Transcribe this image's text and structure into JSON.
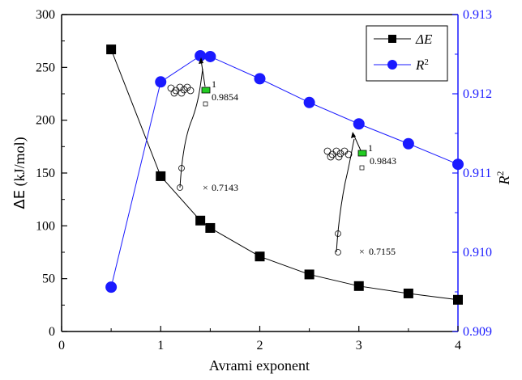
{
  "chart_data": {
    "type": "line",
    "xlabel": "Avrami exponent",
    "ylabel_left": {
      "symbol": "ΔE",
      "unit": " (kJ/mol)"
    },
    "ylabel_right": {
      "base": "R",
      "sup": "2"
    },
    "x_ticks": [
      "0",
      "1",
      "2",
      "3",
      "4"
    ],
    "y_left_ticks": [
      "0",
      "50",
      "100",
      "150",
      "200",
      "250",
      "300"
    ],
    "y_right_ticks": [
      "0.909",
      "0.910",
      "0.911",
      "0.912",
      "0.913"
    ],
    "xlim": [
      0,
      4
    ],
    "ylim_left": [
      0,
      300
    ],
    "ylim_right": [
      0.909,
      0.913
    ],
    "series": [
      {
        "name": "ΔE",
        "axis": "left",
        "marker": "square",
        "color": "#000000",
        "x": [
          0.5,
          1.0,
          1.4,
          1.5,
          2.0,
          2.5,
          3.0,
          3.5,
          4.0
        ],
        "y": [
          267,
          147,
          105,
          98,
          71,
          54,
          43,
          36,
          30
        ]
      },
      {
        "name": "R²",
        "axis": "right",
        "marker": "circle",
        "color": "#1a1aff",
        "x": [
          0.5,
          1.0,
          1.4,
          1.5,
          2.0,
          2.5,
          3.0,
          3.5,
          4.0
        ],
        "y": [
          0.90956,
          0.91215,
          0.91248,
          0.91247,
          0.91219,
          0.91189,
          0.91162,
          0.91137,
          0.91111
        ]
      }
    ],
    "legend": {
      "position": "top-right",
      "entries": [
        {
          "label": {
            "base": "ΔE",
            "sup": ""
          },
          "marker": "square",
          "color": "#000000"
        },
        {
          "label": {
            "base": "R",
            "sup": "2"
          },
          "marker": "circle",
          "color": "#1a1aff"
        }
      ]
    },
    "annotations": {
      "inset1": {
        "top": "1",
        "best": "0.9854",
        "low": "0.7143"
      },
      "inset2": {
        "top": "1",
        "best": "0.9843",
        "low": "0.7155"
      }
    },
    "colors": {
      "axis": "#000000",
      "right_axis": "#1a1aff",
      "inset_best": "#22cc22"
    }
  }
}
